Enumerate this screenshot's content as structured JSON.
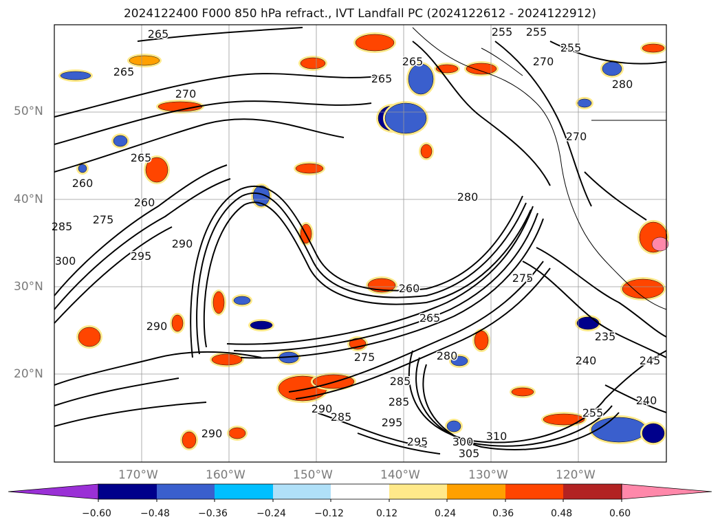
{
  "title": "2024122400 F000 850 hPa refract., IVT Landfall PC (2024122612 - 2024122912)",
  "lat_labels": [
    "50°N",
    "40°N",
    "30°N",
    "20°N"
  ],
  "lon_labels": [
    "170°W",
    "160°W",
    "150°W",
    "140°W",
    "130°W",
    "120°W"
  ],
  "contour_labels": [
    "265",
    "265",
    "270",
    "265",
    "260",
    "260",
    "275",
    "285",
    "300",
    "290",
    "295",
    "290",
    "265",
    "265",
    "255",
    "255",
    "255",
    "270",
    "280",
    "280",
    "275",
    "265",
    "260",
    "270",
    "285",
    "295",
    "290",
    "285",
    "290",
    "295",
    "300",
    "305",
    "310",
    "285",
    "275",
    "280",
    "235",
    "240",
    "245",
    "240",
    "255"
  ],
  "colorbar": {
    "tick_labels": [
      "−0.60",
      "−0.48",
      "−0.36",
      "−0.24",
      "−0.12",
      "0.12",
      "0.24",
      "0.36",
      "0.48",
      "0.60"
    ],
    "colors": [
      "#9a30d6",
      "#00008b",
      "#3a5fcd",
      "#00bfff",
      "#b0e0f8",
      "#ffffff",
      "#ffe98a",
      "#ffa000",
      "#ff4500",
      "#b22222",
      "#ff88aa"
    ]
  },
  "shading_colors": {
    "blue_dark": "#00008b",
    "blue": "#3a5fcd",
    "blue_light": "#00bfff",
    "orange": "#ffa000",
    "red": "#ff4500",
    "yellow": "#ffe98a",
    "pink": "#ff88aa"
  }
}
